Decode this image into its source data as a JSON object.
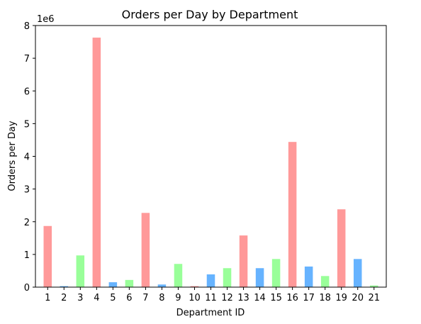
{
  "chart_data": {
    "type": "bar",
    "title": "Orders per Day by Department",
    "xlabel": "Department ID",
    "ylabel": "Orders per Day",
    "y_scale_label": "1e6",
    "ylim": [
      0,
      8000000
    ],
    "y_ticks": [
      0,
      1,
      2,
      3,
      4,
      5,
      6,
      7,
      8
    ],
    "y_tick_multiplier": 1000000,
    "grid": false,
    "legend": "none",
    "categories": [
      "1",
      "2",
      "3",
      "4",
      "5",
      "6",
      "7",
      "8",
      "9",
      "10",
      "11",
      "12",
      "13",
      "14",
      "15",
      "16",
      "17",
      "18",
      "19",
      "20",
      "21"
    ],
    "values": [
      1870000,
      30000,
      970000,
      7630000,
      150000,
      220000,
      2270000,
      80000,
      710000,
      30000,
      390000,
      580000,
      1580000,
      580000,
      860000,
      4440000,
      630000,
      340000,
      2380000,
      860000,
      50000
    ],
    "colors": [
      "#ff9999",
      "#66b3ff",
      "#99ff99",
      "#ff9999",
      "#66b3ff",
      "#99ff99",
      "#ff9999",
      "#66b3ff",
      "#99ff99",
      "#ff9999",
      "#66b3ff",
      "#99ff99",
      "#ff9999",
      "#66b3ff",
      "#99ff99",
      "#ff9999",
      "#66b3ff",
      "#99ff99",
      "#ff9999",
      "#66b3ff",
      "#99ff99"
    ]
  }
}
